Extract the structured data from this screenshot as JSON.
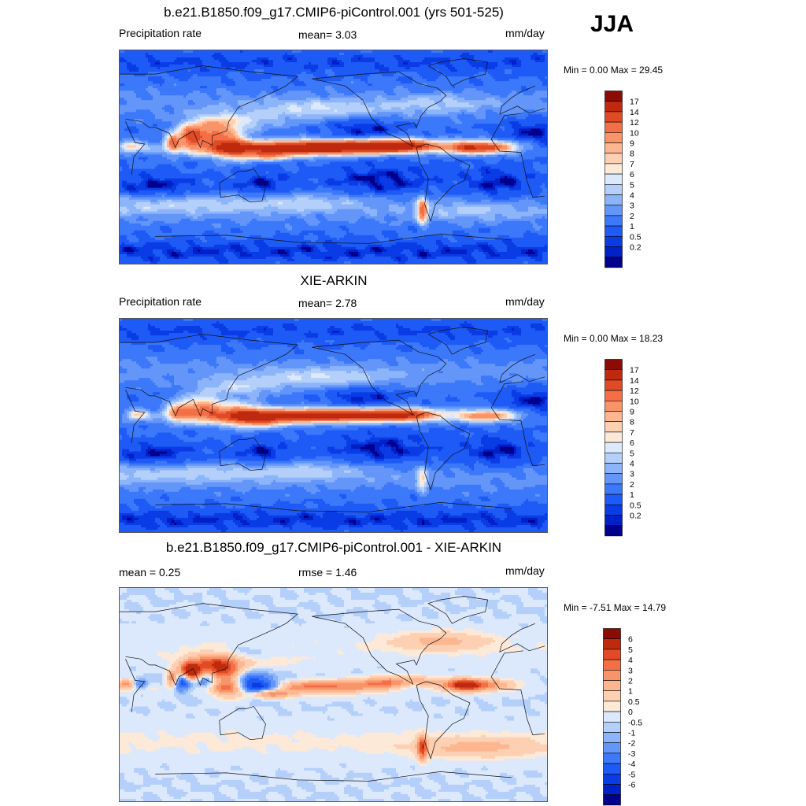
{
  "season": "JJA",
  "colors": {
    "seq": [
      "#00008c",
      "#0020c8",
      "#0a3ce6",
      "#1e5af5",
      "#3c78fa",
      "#6496fa",
      "#8cb4fa",
      "#b4d0fa",
      "#dce8fc",
      "#fde9d7",
      "#fdd0b3",
      "#fcb690",
      "#f99469",
      "#f46f46",
      "#e04b25",
      "#bf2a0e",
      "#8c0c04"
    ],
    "div": [
      "#00008c",
      "#0020c8",
      "#0a3ce6",
      "#1e5af5",
      "#3c78fa",
      "#6496fa",
      "#8cb4fa",
      "#b4d0fa",
      "#dce8fc",
      "#fde9d7",
      "#fdd0b3",
      "#fcb690",
      "#f99469",
      "#f46f46",
      "#e04b25",
      "#bf2a0e",
      "#8c0c04"
    ]
  },
  "panels": [
    {
      "title": "b.e21.B1850.f09_g17.CMIP6-piControl.001 (yrs 501-525)",
      "left_label": "Precipitation rate",
      "center_label": "mean=   3.03",
      "right_label": "mm/day",
      "minmax": "Min =   0.00 Max =  29.45",
      "scheme": "seq",
      "levels": [
        "17",
        "14",
        "12",
        "10",
        "9",
        "8",
        "7",
        "6",
        "5",
        "4",
        "3",
        "2",
        "1",
        "0.5",
        "0.2"
      ]
    },
    {
      "title": "XIE-ARKIN",
      "left_label": "Precipitation rate",
      "center_label": "mean=   2.78",
      "right_label": "mm/day",
      "minmax": "Min =   0.00 Max =  18.23",
      "scheme": "seq",
      "levels": [
        "17",
        "14",
        "12",
        "10",
        "9",
        "8",
        "7",
        "6",
        "5",
        "4",
        "3",
        "2",
        "1",
        "0.5",
        "0.2"
      ]
    },
    {
      "title": "b.e21.B1850.f09_g17.CMIP6-piControl.001 - XIE-ARKIN",
      "left_label": "mean =   0.25",
      "center_label": "rmse =   1.46",
      "right_label": "mm/day",
      "minmax": "Min =  -7.51 Max =  14.79",
      "scheme": "div",
      "levels": [
        "6",
        "5",
        "4",
        "3",
        "2",
        "1",
        "0.5",
        "0",
        "-0.5",
        "-1",
        "-2",
        "-3",
        "-4",
        "-5",
        "-6"
      ]
    }
  ],
  "chart_data": [
    {
      "type": "heatmap",
      "title": "b.e21.B1850.f09_g17.CMIP6-piControl.001 (yrs 501-525)",
      "variable": "Precipitation rate",
      "units": "mm/day",
      "mean": 3.03,
      "min": 0.0,
      "max": 29.45,
      "contour_levels": [
        0.2,
        0.5,
        1,
        2,
        3,
        4,
        5,
        6,
        7,
        8,
        9,
        10,
        12,
        14,
        17
      ]
    },
    {
      "type": "heatmap",
      "title": "XIE-ARKIN",
      "variable": "Precipitation rate",
      "units": "mm/day",
      "mean": 2.78,
      "min": 0.0,
      "max": 18.23,
      "contour_levels": [
        0.2,
        0.5,
        1,
        2,
        3,
        4,
        5,
        6,
        7,
        8,
        9,
        10,
        12,
        14,
        17
      ]
    },
    {
      "type": "heatmap",
      "title": "b.e21.B1850.f09_g17.CMIP6-piControl.001 - XIE-ARKIN",
      "units": "mm/day",
      "mean": 0.25,
      "rmse": 1.46,
      "min": -7.51,
      "max": 14.79,
      "contour_levels": [
        -6,
        -5,
        -4,
        -3,
        -2,
        -1,
        -0.5,
        0,
        0.5,
        1,
        2,
        3,
        4,
        5,
        6
      ]
    }
  ]
}
